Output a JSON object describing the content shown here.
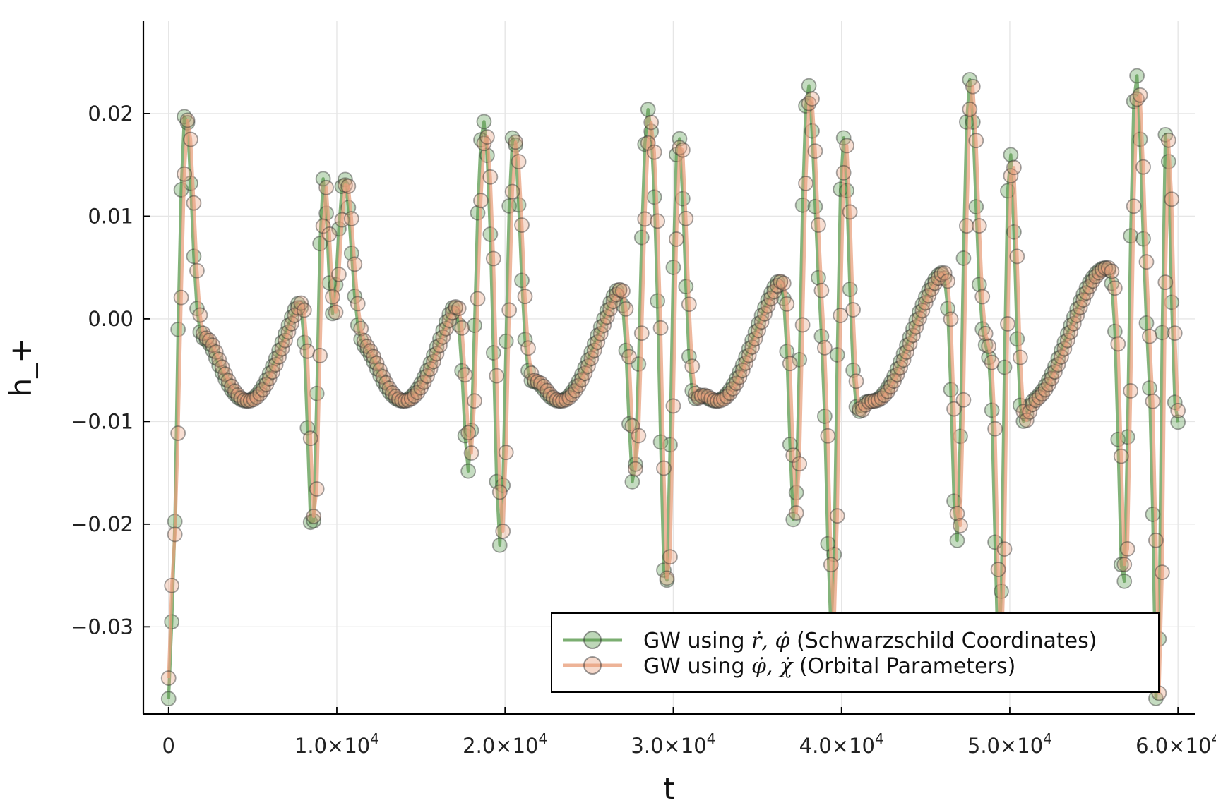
{
  "chart_data": {
    "type": "line",
    "xlabel": "t",
    "ylabel": "h_+",
    "xlim": [
      -1500,
      61000
    ],
    "ylim": [
      -0.0385,
      0.029
    ],
    "grid": true,
    "legend_position": "bottom-right",
    "x_ticks": [
      {
        "value": 0,
        "mantissa": "0",
        "exponent": ""
      },
      {
        "value": 10000,
        "mantissa": "1.0×10",
        "exponent": "4"
      },
      {
        "value": 20000,
        "mantissa": "2.0×10",
        "exponent": "4"
      },
      {
        "value": 30000,
        "mantissa": "3.0×10",
        "exponent": "4"
      },
      {
        "value": 40000,
        "mantissa": "4.0×10",
        "exponent": "4"
      },
      {
        "value": 50000,
        "mantissa": "5.0×10",
        "exponent": "4"
      },
      {
        "value": 60000,
        "mantissa": "6.0×10",
        "exponent": "4"
      }
    ],
    "y_ticks": [
      {
        "value": 0.02,
        "label": "0.02"
      },
      {
        "value": 0.01,
        "label": "0.01"
      },
      {
        "value": 0.0,
        "label": "0.00"
      },
      {
        "value": -0.01,
        "label": "−0.01"
      },
      {
        "value": -0.02,
        "label": "−0.02"
      },
      {
        "value": -0.03,
        "label": "−0.03"
      }
    ],
    "series": [
      {
        "name": "GW using ṙ, φ̇ (Schwarzschild Coordinates)",
        "label_prefix": "GW using",
        "label_math": "ṙ, φ̇",
        "label_suffix": "(Schwarzschild Coordinates)",
        "color": "#5a9a4e",
        "model": {
          "start": -0.037,
          "phase_shift": 0,
          "peaks": [
            {
              "c": 1000,
              "a": 0.0205,
              "w": 700
            },
            {
              "c": 9300,
              "a": 0.0235,
              "w": 700
            },
            {
              "c": 10400,
              "a": 0.0145,
              "w": 800
            },
            {
              "c": 18700,
              "a": 0.0175,
              "w": 800
            },
            {
              "c": 20500,
              "a": 0.022,
              "w": 750
            },
            {
              "c": 28500,
              "a": 0.0195,
              "w": 800
            },
            {
              "c": 30300,
              "a": 0.0245,
              "w": 700
            },
            {
              "c": 38000,
              "a": 0.023,
              "w": 750
            },
            {
              "c": 40100,
              "a": 0.0265,
              "w": 650
            },
            {
              "c": 47600,
              "a": 0.0245,
              "w": 700
            },
            {
              "c": 50000,
              "a": 0.0275,
              "w": 600
            },
            {
              "c": 57500,
              "a": 0.028,
              "w": 700
            },
            {
              "c": 59300,
              "a": 0.031,
              "w": 500
            }
          ]
        }
      },
      {
        "name": "GW using φ̇, χ̇ (Orbital Parameters)",
        "label_prefix": "GW using",
        "label_math": "φ̇, χ̇",
        "label_suffix": "(Orbital Parameters)",
        "color": "#e8a07d",
        "model": {
          "start": -0.035,
          "phase_shift": 150,
          "peaks": [
            {
              "c": 1000,
              "a": 0.0195,
              "w": 700
            },
            {
              "c": 9300,
              "a": 0.022,
              "w": 700
            },
            {
              "c": 10400,
              "a": 0.014,
              "w": 800
            },
            {
              "c": 18700,
              "a": 0.016,
              "w": 800
            },
            {
              "c": 20500,
              "a": 0.021,
              "w": 750
            },
            {
              "c": 28500,
              "a": 0.018,
              "w": 800
            },
            {
              "c": 30300,
              "a": 0.024,
              "w": 700
            },
            {
              "c": 38000,
              "a": 0.022,
              "w": 750
            },
            {
              "c": 40100,
              "a": 0.026,
              "w": 650
            },
            {
              "c": 47600,
              "a": 0.024,
              "w": 700
            },
            {
              "c": 50000,
              "a": 0.027,
              "w": 600
            },
            {
              "c": 57500,
              "a": 0.0265,
              "w": 700
            },
            {
              "c": 59300,
              "a": 0.029,
              "w": 500
            }
          ]
        }
      }
    ]
  }
}
